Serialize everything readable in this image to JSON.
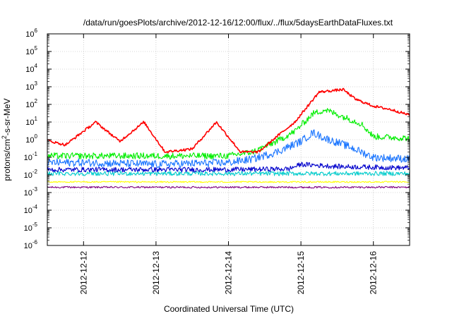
{
  "chart_data": {
    "type": "line",
    "title": "/data/run/goesPlots/archive/2012-12-16/12:00/flux/../flux/5daysEarthDataFluxes.txt",
    "xlabel": "Coordinated Universal Time (UTC)",
    "ylabel_parts": {
      "pre": "protons/cm",
      "sup": "2",
      "post": "-s-sr-MeV"
    },
    "xlim": [
      "2012-12-11T12:00",
      "2012-12-16T12:00"
    ],
    "x_ticks": [
      "2012-12-12",
      "2012-12-13",
      "2012-12-14",
      "2012-12-15",
      "2012-12-16"
    ],
    "yscale": "log",
    "ylim": [
      1e-06,
      1000000.0
    ],
    "y_ticks": [
      {
        "base": "10",
        "exp": "-6"
      },
      {
        "base": "10",
        "exp": "-5"
      },
      {
        "base": "10",
        "exp": "-4"
      },
      {
        "base": "10",
        "exp": "-3"
      },
      {
        "base": "10",
        "exp": "-2"
      },
      {
        "base": "10",
        "exp": "-1"
      },
      {
        "base": "10",
        "exp": "0"
      },
      {
        "base": "10",
        "exp": "1"
      },
      {
        "base": "10",
        "exp": "2"
      },
      {
        "base": "10",
        "exp": "3"
      },
      {
        "base": "10",
        "exp": "4"
      },
      {
        "base": "10",
        "exp": "5"
      },
      {
        "base": "10",
        "exp": "6"
      }
    ],
    "grid": true,
    "series": [
      {
        "color": "#800080",
        "x": [
          "2012-12-11T12:00",
          "2012-12-12T12:00",
          "2012-12-13T12:00",
          "2012-12-14T12:00",
          "2012-12-15T12:00",
          "2012-12-16T12:00"
        ],
        "y": [
          0.002,
          0.002,
          0.002,
          0.002,
          0.002,
          0.002
        ]
      },
      {
        "color": "#ffff00",
        "x": [
          "2012-12-11T12:00",
          "2012-12-12T12:00",
          "2012-12-13T12:00",
          "2012-12-14T12:00",
          "2012-12-15T12:00",
          "2012-12-16T12:00"
        ],
        "y": [
          0.004,
          0.004,
          0.004,
          0.004,
          0.004,
          0.004
        ]
      },
      {
        "color": "#00cccc",
        "x": [
          "2012-12-11T12:00",
          "2012-12-12T12:00",
          "2012-12-13T12:00",
          "2012-12-14T12:00",
          "2012-12-15T12:00",
          "2012-12-16T12:00"
        ],
        "y": [
          0.012,
          0.012,
          0.012,
          0.012,
          0.012,
          0.012
        ]
      },
      {
        "color": "#0000cc",
        "x": [
          "2012-12-11T12:00",
          "2012-12-12T12:00",
          "2012-12-13T12:00",
          "2012-12-14T00:00",
          "2012-12-14T20:00",
          "2012-12-15T00:00",
          "2012-12-15T12:00",
          "2012-12-16T12:00"
        ],
        "y": [
          0.02,
          0.02,
          0.02,
          0.02,
          0.022,
          0.04,
          0.03,
          0.025
        ]
      },
      {
        "color": "#1a75ff",
        "x": [
          "2012-12-11T12:00",
          "2012-12-12T00:00",
          "2012-12-13T00:00",
          "2012-12-14T00:00",
          "2012-12-14T08:00",
          "2012-12-14T16:00",
          "2012-12-15T00:00",
          "2012-12-15T04:00",
          "2012-12-15T08:00",
          "2012-12-15T16:00",
          "2012-12-16T00:00",
          "2012-12-16T12:00"
        ],
        "y": [
          0.05,
          0.05,
          0.04,
          0.05,
          0.08,
          0.2,
          0.8,
          2.5,
          1.2,
          0.4,
          0.1,
          0.08
        ]
      },
      {
        "color": "#00ee00",
        "x": [
          "2012-12-11T12:00",
          "2012-12-12T00:00",
          "2012-12-13T00:00",
          "2012-12-14T00:00",
          "2012-12-14T08:00",
          "2012-12-14T16:00",
          "2012-12-14T22:00",
          "2012-12-15T04:00",
          "2012-12-15T08:00",
          "2012-12-15T14:00",
          "2012-12-15T20:00",
          "2012-12-16T00:00",
          "2012-12-16T12:00"
        ],
        "y": [
          0.12,
          0.12,
          0.12,
          0.12,
          0.2,
          0.8,
          3,
          30,
          50,
          20,
          8,
          1.5,
          1.2
        ]
      },
      {
        "color": "#ff0000",
        "x": [
          "2012-12-11T12:00",
          "2012-12-11T18:00",
          "2012-12-12T04:00",
          "2012-12-12T12:00",
          "2012-12-12T20:00",
          "2012-12-13T03:00",
          "2012-12-13T12:00",
          "2012-12-13T20:00",
          "2012-12-14T04:00",
          "2012-12-14T10:00",
          "2012-12-14T16:00",
          "2012-12-14T22:00",
          "2012-12-15T06:00",
          "2012-12-15T14:00",
          "2012-12-15T18:00",
          "2012-12-16T00:00",
          "2012-12-16T06:00",
          "2012-12-16T12:00"
        ],
        "y": [
          0.9,
          0.5,
          10,
          0.8,
          10,
          0.2,
          0.3,
          10,
          0.2,
          0.2,
          1.5,
          10,
          500,
          700,
          200,
          80,
          50,
          25
        ]
      }
    ]
  }
}
